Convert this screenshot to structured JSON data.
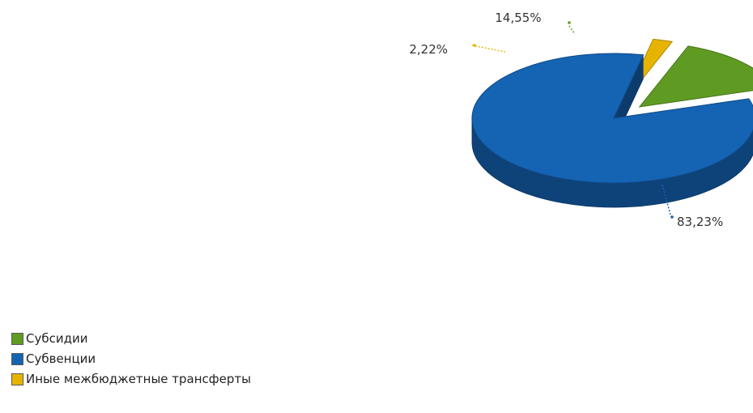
{
  "chart_data": {
    "type": "pie",
    "title": "",
    "three_d": true,
    "slices": [
      {
        "label": "Субсидии",
        "value": 14.55,
        "value_label": "14,55%",
        "color": "#5f9b22"
      },
      {
        "label": "Субвенции",
        "value": 83.23,
        "value_label": "83,23%",
        "color": "#1563b3"
      },
      {
        "label": "Иные межбюджетные трансферты",
        "value": 2.22,
        "value_label": "2,22%",
        "color": "#e6b400"
      }
    ],
    "legend_position": "bottom-left"
  }
}
